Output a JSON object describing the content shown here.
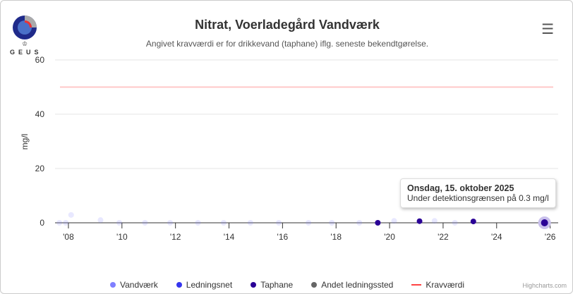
{
  "logo_text": "GEUS",
  "menu_icon": "hamburger-icon",
  "tooltip": {
    "title": "Onsdag, 15. oktober 2025",
    "body": "Under detektionsgrænsen på 0.3 mg/l"
  },
  "credit": "Highcharts.com",
  "chart_data": {
    "type": "scatter",
    "title": "Nitrat, Voerladegård Vandværk",
    "subtitle": "Angivet kravværdi er for drikkevand (taphane) iflg. seneste bekendtgørelse.",
    "ylabel": "mg/l",
    "ylim": [
      0,
      60
    ],
    "yticks": [
      0,
      20,
      40,
      60
    ],
    "xlim": [
      2007.5,
      2026.3
    ],
    "xticks": [
      2008,
      2010,
      2012,
      2014,
      2016,
      2018,
      2020,
      2022,
      2024,
      2026
    ],
    "xtick_labels": [
      "'08",
      "'10",
      "'12",
      "'14",
      "'16",
      "'18",
      "'20",
      "'22",
      "'24",
      "'26"
    ],
    "grid": true,
    "legend_position": "bottom",
    "colors": {
      "Vandværk": "#7f7fff",
      "Ledningsnet": "#3535ee",
      "Taphane": "#2a0096",
      "Andet ledningssted": "#666666",
      "Kravværdi": "#ff4444"
    },
    "series": [
      {
        "name": "Vandværk",
        "x": [
          2007.66,
          2007.9,
          2008.1,
          2009.2,
          2009.9,
          2010.86,
          2011.8,
          2012.84,
          2013.8,
          2014.8,
          2015.86,
          2016.97,
          2017.84,
          2018.87,
          2020.17,
          2021.68,
          2022.44
        ],
        "y": [
          0,
          0,
          2.9,
          1.0,
          0,
          0,
          0,
          0,
          0,
          0,
          0,
          0,
          0,
          0,
          0.7,
          0.7,
          0
        ]
      },
      {
        "name": "Ledningsnet",
        "x": [],
        "y": []
      },
      {
        "name": "Taphane",
        "x": [
          2019.56,
          2021.12,
          2023.13,
          2025.79
        ],
        "y": [
          0,
          0.6,
          0.5,
          0
        ]
      },
      {
        "name": "Andet ledningssted",
        "x": [],
        "y": []
      },
      {
        "name": "Kravværdi",
        "value": 50
      }
    ]
  }
}
